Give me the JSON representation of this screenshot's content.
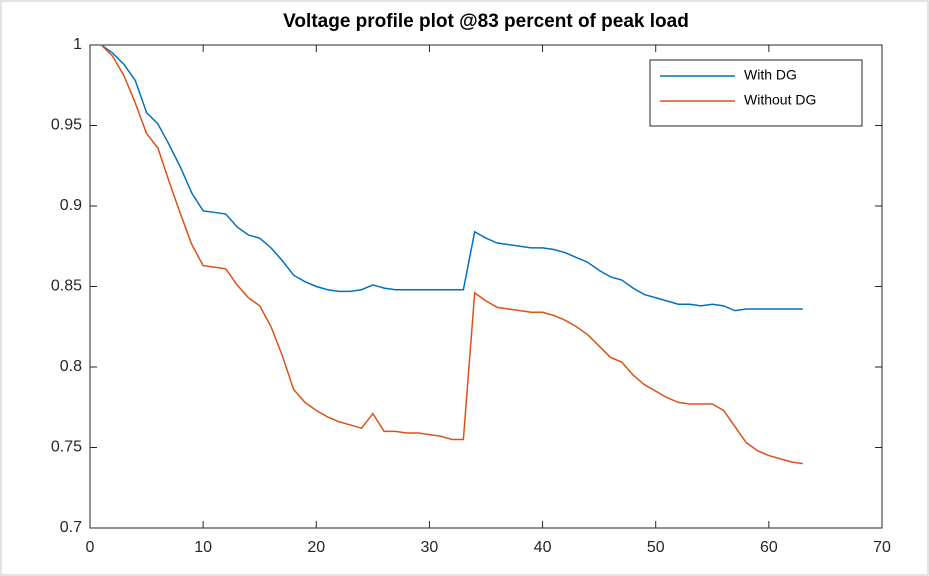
{
  "chart_data": {
    "type": "line",
    "title": "Voltage profile plot @83 percent of peak load",
    "x": [
      1,
      2,
      3,
      4,
      5,
      6,
      7,
      8,
      9,
      10,
      11,
      12,
      13,
      14,
      15,
      16,
      17,
      18,
      19,
      20,
      21,
      22,
      23,
      24,
      25,
      26,
      27,
      28,
      29,
      30,
      31,
      32,
      33,
      34,
      35,
      36,
      37,
      38,
      39,
      40,
      41,
      42,
      43,
      44,
      45,
      46,
      47,
      48,
      49,
      50,
      51,
      52,
      53,
      54,
      55,
      56,
      57,
      58,
      59,
      60,
      61,
      62,
      63
    ],
    "series": [
      {
        "name": "With DG",
        "color": "#0072bd",
        "values": [
          1.0,
          0.995,
          0.988,
          0.978,
          0.958,
          0.951,
          0.938,
          0.924,
          0.908,
          0.897,
          0.896,
          0.895,
          0.887,
          0.882,
          0.88,
          0.874,
          0.866,
          0.857,
          0.853,
          0.85,
          0.848,
          0.847,
          0.847,
          0.848,
          0.851,
          0.849,
          0.848,
          0.848,
          0.848,
          0.848,
          0.848,
          0.848,
          0.848,
          0.884,
          0.88,
          0.877,
          0.876,
          0.875,
          0.874,
          0.874,
          0.873,
          0.871,
          0.868,
          0.865,
          0.86,
          0.856,
          0.854,
          0.849,
          0.845,
          0.843,
          0.841,
          0.839,
          0.839,
          0.838,
          0.839,
          0.838,
          0.835,
          0.836,
          0.836,
          0.836,
          0.836,
          0.836,
          0.836
        ]
      },
      {
        "name": "Without DG",
        "color": "#d95319",
        "values": [
          1.0,
          0.993,
          0.981,
          0.964,
          0.945,
          0.936,
          0.915,
          0.895,
          0.876,
          0.863,
          0.862,
          0.861,
          0.851,
          0.843,
          0.838,
          0.825,
          0.807,
          0.786,
          0.778,
          0.773,
          0.769,
          0.766,
          0.764,
          0.762,
          0.771,
          0.76,
          0.76,
          0.759,
          0.759,
          0.758,
          0.757,
          0.755,
          0.755,
          0.846,
          0.841,
          0.837,
          0.836,
          0.835,
          0.834,
          0.834,
          0.832,
          0.829,
          0.825,
          0.82,
          0.813,
          0.806,
          0.803,
          0.795,
          0.789,
          0.785,
          0.781,
          0.778,
          0.777,
          0.777,
          0.777,
          0.773,
          0.763,
          0.753,
          0.748,
          0.745,
          0.743,
          0.741,
          0.74
        ]
      }
    ],
    "xlim": [
      0,
      70
    ],
    "xticks": [
      0,
      10,
      20,
      30,
      40,
      50,
      60,
      70
    ],
    "ylim": [
      0.7,
      1
    ],
    "yticks": [
      0.7,
      0.75,
      0.8,
      0.85,
      0.9,
      0.95,
      1
    ],
    "legend": "northeast"
  }
}
